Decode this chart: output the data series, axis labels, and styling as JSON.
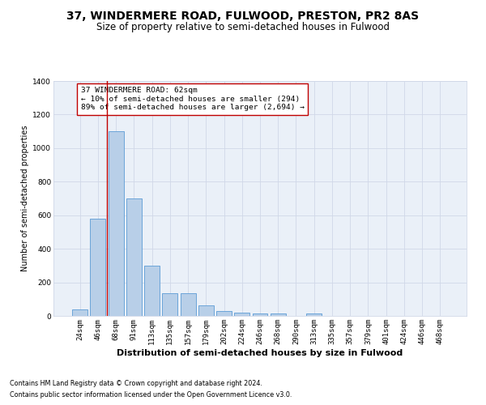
{
  "title_main": "37, WINDERMERE ROAD, FULWOOD, PRESTON, PR2 8AS",
  "title_sub": "Size of property relative to semi-detached houses in Fulwood",
  "xlabel": "Distribution of semi-detached houses by size in Fulwood",
  "ylabel": "Number of semi-detached properties",
  "footnote1": "Contains HM Land Registry data © Crown copyright and database right 2024.",
  "footnote2": "Contains public sector information licensed under the Open Government Licence v3.0.",
  "bar_labels": [
    "24sqm",
    "46sqm",
    "68sqm",
    "91sqm",
    "113sqm",
    "135sqm",
    "157sqm",
    "179sqm",
    "202sqm",
    "224sqm",
    "246sqm",
    "268sqm",
    "290sqm",
    "313sqm",
    "335sqm",
    "357sqm",
    "379sqm",
    "401sqm",
    "424sqm",
    "446sqm",
    "468sqm"
  ],
  "bar_values": [
    40,
    580,
    1100,
    700,
    300,
    135,
    135,
    65,
    30,
    20,
    15,
    15,
    0,
    15,
    0,
    0,
    0,
    0,
    0,
    0,
    0
  ],
  "bar_color": "#b8cfe8",
  "bar_edge_color": "#5b9bd5",
  "vline_x": 1.5,
  "vline_color": "#c00000",
  "annotation_text": "37 WINDERMERE ROAD: 62sqm\n← 10% of semi-detached houses are smaller (294)\n89% of semi-detached houses are larger (2,694) →",
  "annotation_box_color": "#ffffff",
  "annotation_box_edge": "#c00000",
  "ylim": [
    0,
    1400
  ],
  "yticks": [
    0,
    200,
    400,
    600,
    800,
    1000,
    1200,
    1400
  ],
  "grid_color": "#d0d8e8",
  "background_color": "#eaf0f8",
  "title_main_fontsize": 10,
  "title_sub_fontsize": 8.5,
  "xlabel_fontsize": 8,
  "ylabel_fontsize": 7,
  "tick_fontsize": 6.5,
  "annotation_fontsize": 6.8
}
